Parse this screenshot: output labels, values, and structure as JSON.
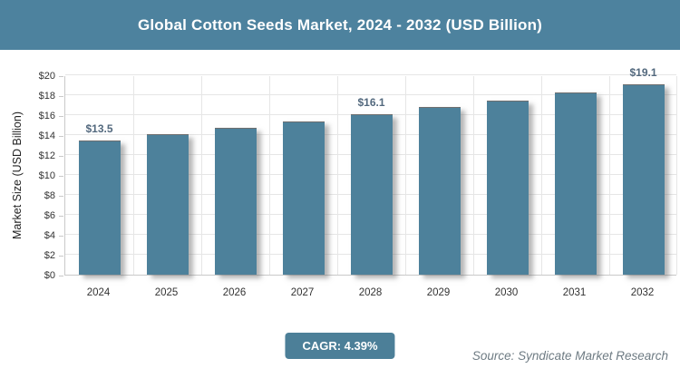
{
  "header": {
    "title": "Global Cotton Seeds Market, 2024 - 2032 (USD Billion)"
  },
  "chart_data": {
    "type": "bar",
    "title": "Global Cotton Seeds Market, 2024 - 2032 (USD Billion)",
    "categories": [
      "2024",
      "2025",
      "2026",
      "2027",
      "2028",
      "2029",
      "2030",
      "2031",
      "2032"
    ],
    "values": [
      13.5,
      14.1,
      14.7,
      15.4,
      16.1,
      16.8,
      17.5,
      18.3,
      19.1
    ],
    "value_labels": [
      "$13.5",
      "",
      "",
      "",
      "$16.1",
      "",
      "",
      "",
      "$19.1"
    ],
    "xlabel": "",
    "ylabel": "Market Size (USD Billion)",
    "ylim": [
      0,
      20
    ],
    "ytick_step": 2,
    "ytick_prefix": "$",
    "grid": true,
    "legend_position": "none"
  },
  "footer": {
    "cagr_label": "CAGR: 4.39%",
    "source": "Source: Syndicate Market Research"
  },
  "colors": {
    "banner": "#4D829E",
    "bar": "#4D819B",
    "badge": "#4C7F98",
    "value_label": "#53697E",
    "axis_text": "#333333",
    "gridline": "#E6E6E6",
    "axis_line": "#C9C9C9",
    "source_text": "#6E7B83",
    "title_text": "#FFFFFF"
  }
}
